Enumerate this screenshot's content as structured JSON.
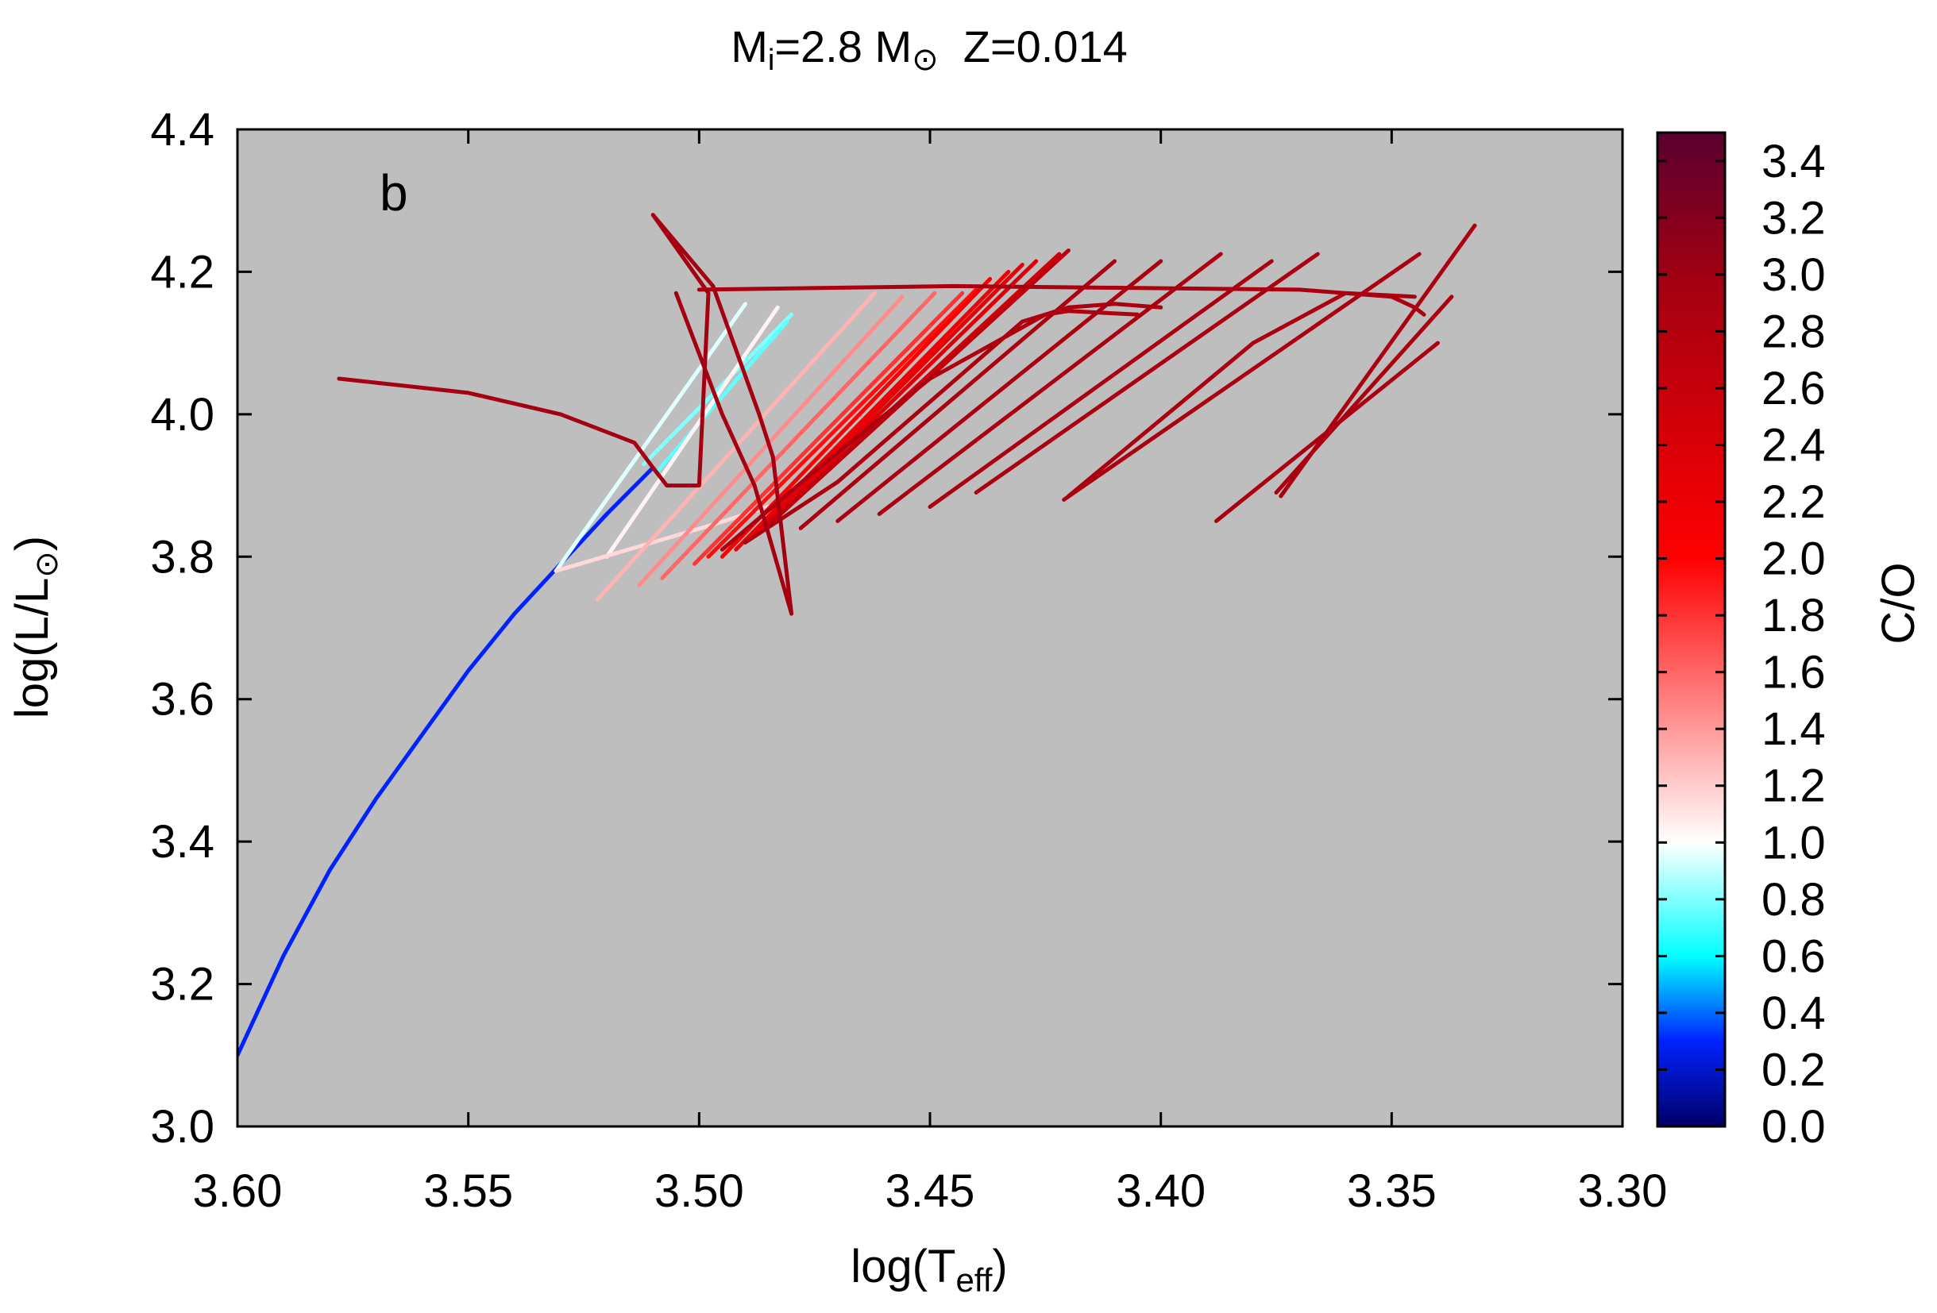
{
  "chart_data": {
    "type": "line",
    "title": {
      "m": "M",
      "m_sub": "i",
      "m_val": "=2.8 M",
      "sun": "⊙",
      "z": "Z=0.014"
    },
    "panel_label": "b",
    "xlabel": {
      "main": "log(T",
      "sub": "eff",
      "close": ")"
    },
    "ylabel": {
      "main": "log(L/L",
      "sun": "⊙",
      "close": ")"
    },
    "colorbar_label": "C/O",
    "xlim": [
      3.6,
      3.3
    ],
    "ylim": [
      3.0,
      4.4
    ],
    "x_ticks": [
      3.6,
      3.55,
      3.5,
      3.45,
      3.4,
      3.35,
      3.3
    ],
    "x_tick_labels": [
      "3.60",
      "3.55",
      "3.50",
      "3.45",
      "3.40",
      "3.35",
      "3.30"
    ],
    "y_ticks": [
      3.0,
      3.2,
      3.4,
      3.6,
      3.8,
      4.0,
      4.2,
      4.4
    ],
    "y_tick_labels": [
      "3.0",
      "3.2",
      "3.4",
      "3.6",
      "3.8",
      "4.0",
      "4.2",
      "4.4"
    ],
    "colorbar": {
      "range": [
        0.0,
        3.5
      ],
      "ticks": [
        0.0,
        0.2,
        0.4,
        0.6,
        0.8,
        1.0,
        1.2,
        1.4,
        1.6,
        1.8,
        2.0,
        2.2,
        2.4,
        2.6,
        2.8,
        3.0,
        3.2,
        3.4
      ],
      "tick_labels": [
        "0.0",
        "0.2",
        "0.4",
        "0.6",
        "0.8",
        "1.0",
        "1.2",
        "1.4",
        "1.6",
        "1.8",
        "2.0",
        "2.2",
        "2.4",
        "2.6",
        "2.8",
        "3.0",
        "3.2",
        "3.4"
      ],
      "stops": [
        {
          "v": 0.0,
          "color": "#000066"
        },
        {
          "v": 0.3,
          "color": "#0022ff"
        },
        {
          "v": 0.6,
          "color": "#00ffff"
        },
        {
          "v": 1.0,
          "color": "#ffffff"
        },
        {
          "v": 2.0,
          "color": "#ff0000"
        },
        {
          "v": 3.0,
          "color": "#a00012"
        },
        {
          "v": 3.5,
          "color": "#5a0030"
        }
      ]
    },
    "plot_background": "#bebebe",
    "series": [
      {
        "co": 0.3,
        "points": [
          [
            3.6,
            3.1
          ],
          [
            3.59,
            3.24
          ],
          [
            3.58,
            3.36
          ],
          [
            3.57,
            3.46
          ],
          [
            3.56,
            3.55
          ],
          [
            3.55,
            3.64
          ],
          [
            3.54,
            3.72
          ],
          [
            3.53,
            3.79
          ],
          [
            3.52,
            3.86
          ],
          [
            3.51,
            3.925
          ]
        ]
      },
      {
        "co": 0.8,
        "points": [
          [
            3.512,
            3.93
          ],
          [
            3.48,
            4.14
          ]
        ]
      },
      {
        "co": 0.75,
        "points": [
          [
            3.509,
            3.92
          ],
          [
            3.481,
            4.13
          ]
        ]
      },
      {
        "co": 0.95,
        "points": [
          [
            3.531,
            3.78
          ],
          [
            3.49,
            4.155
          ]
        ]
      },
      {
        "co": 1.05,
        "points": [
          [
            3.52,
            3.8
          ],
          [
            3.483,
            4.15
          ]
        ]
      },
      {
        "co": 1.15,
        "points": [
          [
            3.531,
            3.78
          ],
          [
            3.497,
            3.845
          ],
          [
            3.485,
            3.87
          ]
        ]
      },
      {
        "co": 1.3,
        "points": [
          [
            3.522,
            3.74
          ],
          [
            3.462,
            4.17
          ]
        ]
      },
      {
        "co": 1.45,
        "points": [
          [
            3.513,
            3.76
          ],
          [
            3.456,
            4.165
          ]
        ]
      },
      {
        "co": 1.6,
        "points": [
          [
            3.508,
            3.77
          ],
          [
            3.449,
            4.17
          ]
        ]
      },
      {
        "co": 1.8,
        "points": [
          [
            3.501,
            3.79
          ],
          [
            3.443,
            4.17
          ]
        ]
      },
      {
        "co": 1.95,
        "points": [
          [
            3.498,
            3.8
          ],
          [
            3.44,
            4.175
          ]
        ]
      },
      {
        "co": 2.05,
        "points": [
          [
            3.495,
            3.8
          ],
          [
            3.437,
            4.19
          ]
        ]
      },
      {
        "co": 2.15,
        "points": [
          [
            3.492,
            3.81
          ],
          [
            3.433,
            4.2
          ]
        ]
      },
      {
        "co": 2.25,
        "points": [
          [
            3.49,
            3.82
          ],
          [
            3.43,
            4.21
          ]
        ]
      },
      {
        "co": 2.35,
        "points": [
          [
            3.488,
            3.83
          ],
          [
            3.427,
            4.215
          ]
        ]
      },
      {
        "co": 2.5,
        "points": [
          [
            3.486,
            3.84
          ],
          [
            3.422,
            4.225
          ]
        ]
      },
      {
        "co": 2.7,
        "points": [
          [
            3.484,
            3.85
          ],
          [
            3.42,
            4.23
          ]
        ]
      },
      {
        "co": 2.9,
        "points": [
          [
            3.49,
            3.82
          ],
          [
            3.47,
            3.905
          ],
          [
            3.43,
            4.13
          ],
          [
            3.42,
            4.15
          ],
          [
            3.41,
            4.155
          ],
          [
            3.4,
            4.15
          ]
        ]
      },
      {
        "co": 2.85,
        "points": [
          [
            3.495,
            3.81
          ],
          [
            3.475,
            3.92
          ],
          [
            3.45,
            4.05
          ],
          [
            3.425,
            4.14
          ],
          [
            3.42,
            4.145
          ],
          [
            3.405,
            4.14
          ]
        ]
      },
      {
        "co": 2.9,
        "points": [
          [
            3.478,
            3.84
          ],
          [
            3.41,
            4.215
          ]
        ]
      },
      {
        "co": 2.9,
        "points": [
          [
            3.47,
            3.85
          ],
          [
            3.4,
            4.215
          ]
        ]
      },
      {
        "co": 2.9,
        "points": [
          [
            3.461,
            3.86
          ],
          [
            3.387,
            4.225
          ]
        ]
      },
      {
        "co": 2.9,
        "points": [
          [
            3.45,
            3.87
          ],
          [
            3.376,
            4.215
          ]
        ]
      },
      {
        "co": 2.9,
        "points": [
          [
            3.44,
            3.89
          ],
          [
            3.366,
            4.225
          ]
        ]
      },
      {
        "co": 2.9,
        "points": [
          [
            3.421,
            3.88
          ],
          [
            3.344,
            4.225
          ]
        ]
      },
      {
        "co": 2.9,
        "points": [
          [
            3.42,
            3.885
          ],
          [
            3.38,
            4.1
          ],
          [
            3.36,
            4.17
          ],
          [
            3.345,
            4.165
          ]
        ]
      },
      {
        "co": 2.9,
        "points": [
          [
            3.388,
            3.85
          ],
          [
            3.34,
            4.1
          ]
        ]
      },
      {
        "co": 2.9,
        "points": [
          [
            3.375,
            3.89
          ],
          [
            3.337,
            4.165
          ]
        ]
      },
      {
        "co": 2.9,
        "points": [
          [
            3.374,
            3.885
          ],
          [
            3.332,
            4.265
          ]
        ]
      },
      {
        "co": 2.9,
        "points": [
          [
            3.5,
            4.175
          ],
          [
            3.445,
            4.18
          ],
          [
            3.37,
            4.175
          ],
          [
            3.35,
            4.165
          ],
          [
            3.345,
            4.15
          ],
          [
            3.343,
            4.14
          ]
        ]
      },
      {
        "co": 2.95,
        "points": [
          [
            3.578,
            4.05
          ],
          [
            3.55,
            4.03
          ],
          [
            3.53,
            4.0
          ],
          [
            3.514,
            3.96
          ],
          [
            3.51,
            3.925
          ],
          [
            3.507,
            3.9
          ],
          [
            3.5,
            3.9
          ],
          [
            3.498,
            4.17
          ],
          [
            3.51,
            4.28
          ],
          [
            3.497,
            4.18
          ],
          [
            3.487,
            4.0
          ],
          [
            3.484,
            3.94
          ],
          [
            3.48,
            3.72
          ],
          [
            3.484,
            3.81
          ],
          [
            3.488,
            3.9
          ],
          [
            3.495,
            4.0
          ],
          [
            3.505,
            4.17
          ]
        ]
      }
    ]
  }
}
